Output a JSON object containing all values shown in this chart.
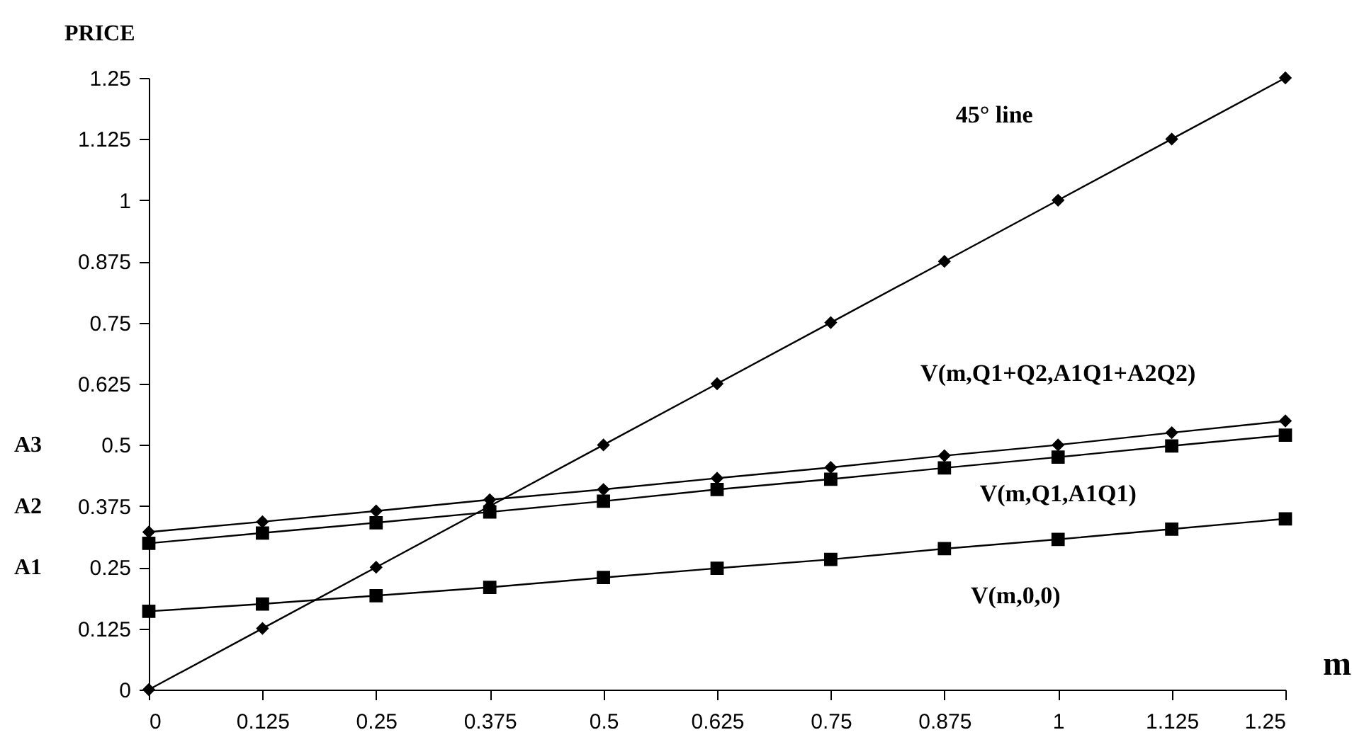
{
  "chart_data": {
    "type": "line",
    "xlabel": "m",
    "ylabel": "PRICE",
    "x": [
      0,
      0.125,
      0.25,
      0.375,
      0.5,
      0.625,
      0.75,
      0.875,
      1,
      1.125,
      1.25
    ],
    "series": [
      {
        "name": "45° line",
        "color": "#000000",
        "marker": "diamond",
        "values": [
          0,
          0.125,
          0.25,
          0.375,
          0.5,
          0.625,
          0.75,
          0.875,
          1,
          1.125,
          1.25
        ]
      },
      {
        "name": "V(m,Q1+Q2,A1Q1+A2Q2)",
        "color": "#000000",
        "marker": "diamond",
        "values": [
          0.322,
          0.343,
          0.365,
          0.388,
          0.409,
          0.432,
          0.454,
          0.478,
          0.5,
          0.525,
          0.549
        ]
      },
      {
        "name": "V(m,Q1,A1Q1)",
        "color": "#000000",
        "marker": "square",
        "values": [
          0.299,
          0.32,
          0.341,
          0.363,
          0.385,
          0.409,
          0.43,
          0.453,
          0.475,
          0.498,
          0.52
        ]
      },
      {
        "name": "V(m,0,0)",
        "color": "#000000",
        "marker": "square",
        "values": [
          0.16,
          0.175,
          0.192,
          0.209,
          0.229,
          0.248,
          0.266,
          0.288,
          0.307,
          0.328,
          0.349
        ]
      }
    ],
    "annotations": [
      "A1",
      "A2",
      "A3"
    ],
    "xlim": [
      0,
      1.25
    ],
    "ylim": [
      0,
      1.25
    ],
    "xticks": [
      0,
      0.125,
      0.25,
      0.375,
      0.5,
      0.625,
      0.75,
      0.875,
      1,
      1.125,
      1.25
    ],
    "yticks": [
      0,
      0.125,
      0.25,
      0.375,
      0.5,
      0.625,
      0.75,
      0.875,
      1,
      1.125,
      1.25
    ],
    "grid": false,
    "line_style": "solid"
  }
}
